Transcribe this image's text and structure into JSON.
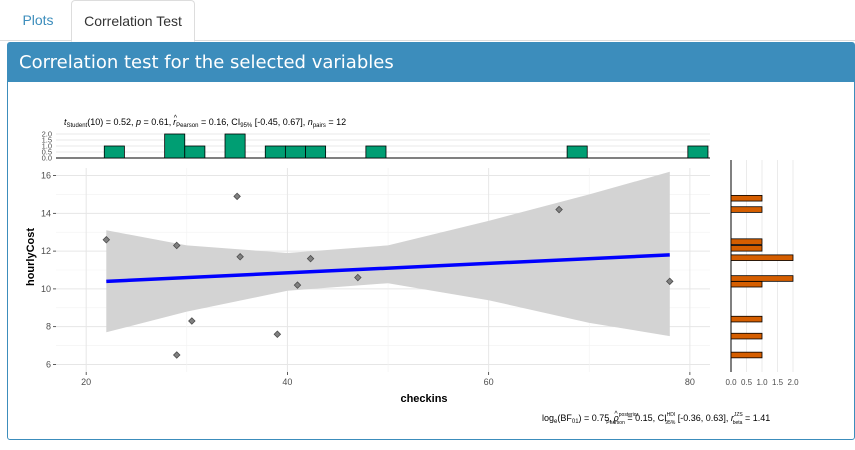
{
  "tabs": [
    {
      "label": "Plots"
    },
    {
      "label": "Correlation Test"
    }
  ],
  "panel": {
    "title": "Correlation test for the selected variables"
  },
  "colors": {
    "accent": "#3c8dbc",
    "top_histogram": "#009e73",
    "side_histogram": "#d55e00",
    "regression_line": "#0000ff",
    "confidence_band": "#d3d3d3",
    "points": "#808080"
  },
  "chart_data": {
    "type": "scatter",
    "subtitle": {
      "stat_symbol": "t",
      "stat_sub": "Student",
      "stat_df": "(10)",
      "stat_value": " = 0.52, ",
      "p_symbol": "p",
      "p_value": " = 0.61, ",
      "r_hat": "^",
      "r_symbol": "r",
      "r_sub": "Pearson",
      "r_value": " = 0.16, CI",
      "ci_sub": "95%",
      "ci_value": " [-0.45, 0.67], ",
      "n_symbol": "n",
      "n_sub": "pairs",
      "n_value": " = 12"
    },
    "caption": {
      "bf_pre": "log",
      "bf_base": "e",
      "bf_open": "(BF",
      "bf_sub": "01",
      "bf_value": ") = 0.75, ",
      "rho_hat": "^",
      "rho_symbol": "ρ",
      "rho_sup": "posterior",
      "rho_sub": "Pearson",
      "rho_value": " = 0.15, CI",
      "ci_sup": "HDI",
      "ci_sub": "95%",
      "ci_value": " [-0.36, 0.63], ",
      "r_symbol": "r",
      "r_sup": "JZS",
      "r_sub": "beta",
      "r_value": " = 1.41"
    },
    "xlabel": "checkins",
    "ylabel": "hourlyCost",
    "xlim": [
      17,
      82
    ],
    "ylim": [
      5.6,
      16.4
    ],
    "xticks": [
      20,
      40,
      60,
      80
    ],
    "yticks": [
      6,
      8,
      10,
      12,
      14,
      16
    ],
    "grid": true,
    "points": [
      {
        "x": 22,
        "y": 12.6
      },
      {
        "x": 29,
        "y": 12.3
      },
      {
        "x": 29,
        "y": 6.5
      },
      {
        "x": 30.5,
        "y": 8.3
      },
      {
        "x": 35,
        "y": 14.9
      },
      {
        "x": 35.3,
        "y": 11.7
      },
      {
        "x": 39,
        "y": 7.6
      },
      {
        "x": 41,
        "y": 10.2
      },
      {
        "x": 42.3,
        "y": 11.6
      },
      {
        "x": 47,
        "y": 10.6
      },
      {
        "x": 67,
        "y": 14.2
      },
      {
        "x": 78,
        "y": 10.4
      }
    ],
    "regression": {
      "x": [
        22,
        78
      ],
      "y": [
        10.4,
        11.8
      ]
    },
    "confidence_band": {
      "x": [
        22,
        30,
        40,
        50,
        60,
        70,
        78
      ],
      "upper": [
        13.1,
        12.3,
        11.9,
        12.3,
        13.6,
        15.0,
        16.2
      ],
      "lower": [
        7.7,
        8.8,
        9.9,
        10.3,
        9.4,
        8.2,
        7.5
      ]
    },
    "top_histogram": {
      "yticks": [
        "2.0",
        "1.5",
        "1.0",
        "0.5",
        "0.0"
      ],
      "bins": [
        {
          "x0": 23,
          "x1": 25,
          "count": 1
        },
        {
          "x0": 29,
          "x1": 31,
          "count": 2
        },
        {
          "x0": 31,
          "x1": 33,
          "count": 1
        },
        {
          "x0": 35,
          "x1": 37,
          "count": 2
        },
        {
          "x0": 39,
          "x1": 41,
          "count": 1
        },
        {
          "x0": 41,
          "x1": 43,
          "count": 1
        },
        {
          "x0": 43,
          "x1": 45,
          "count": 1
        },
        {
          "x0": 49,
          "x1": 51,
          "count": 1
        },
        {
          "x0": 69,
          "x1": 71,
          "count": 1
        },
        {
          "x0": 81,
          "x1": 83,
          "count": 1
        }
      ]
    },
    "side_histogram": {
      "xticks": [
        "0.0",
        "0.5",
        "1.0",
        "1.5",
        "2.0"
      ],
      "bins": [
        {
          "y0": 6.35,
          "y1": 6.65,
          "count": 1
        },
        {
          "y0": 7.35,
          "y1": 7.65,
          "count": 1
        },
        {
          "y0": 8.25,
          "y1": 8.55,
          "count": 1
        },
        {
          "y0": 10.1,
          "y1": 10.4,
          "count": 1
        },
        {
          "y0": 10.4,
          "y1": 10.7,
          "count": 2
        },
        {
          "y0": 11.5,
          "y1": 11.8,
          "count": 2
        },
        {
          "y0": 12.0,
          "y1": 12.3,
          "count": 1
        },
        {
          "y0": 12.35,
          "y1": 12.65,
          "count": 1
        },
        {
          "y0": 14.05,
          "y1": 14.35,
          "count": 1
        },
        {
          "y0": 14.65,
          "y1": 14.95,
          "count": 1
        }
      ]
    }
  }
}
